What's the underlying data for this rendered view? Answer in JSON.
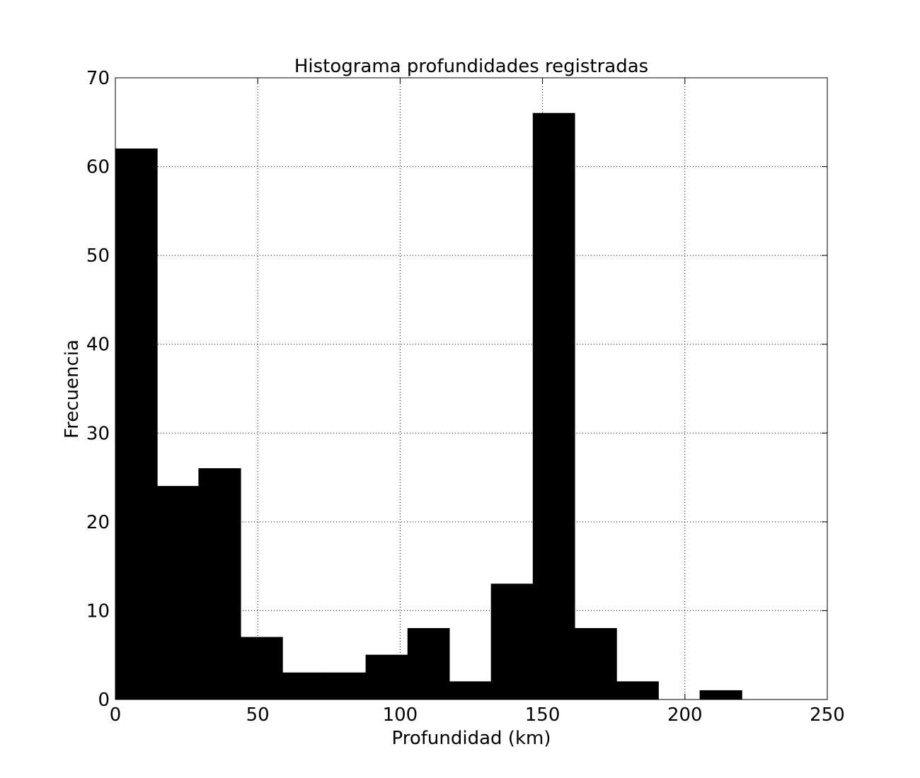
{
  "chart_data": {
    "type": "histogram",
    "title": "Histograma profundidades registradas",
    "x_label": "Profundidad (km)",
    "y_label": "Frecuencia",
    "bins": [
      0,
      14.7,
      29.3,
      44.0,
      58.7,
      73.3,
      88.0,
      102.7,
      117.3,
      132.0,
      146.7,
      161.3,
      176.0,
      190.7,
      205.3,
      220.0
    ],
    "values": [
      62,
      24,
      26,
      7,
      3,
      3,
      5,
      8,
      2,
      13,
      66,
      8,
      2,
      0,
      1
    ],
    "color": "#000000",
    "xlim": [
      0,
      250
    ],
    "xticks": [
      0,
      50,
      100,
      150,
      200,
      250
    ],
    "ylim": [
      0,
      70
    ],
    "yticks": [
      0,
      10,
      20,
      30,
      40,
      50,
      60,
      70
    ],
    "grid": true
  }
}
